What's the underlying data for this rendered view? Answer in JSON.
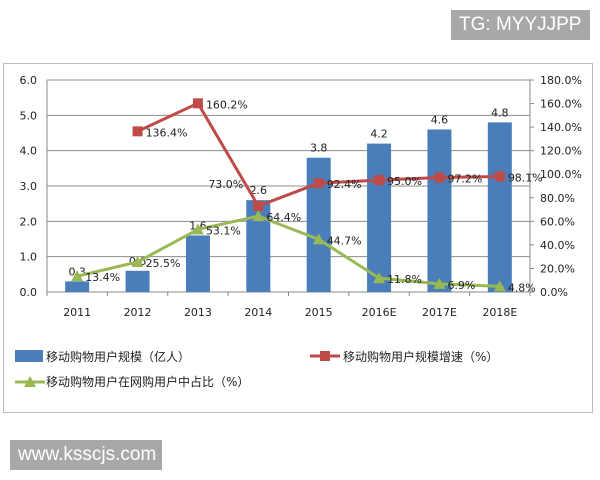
{
  "watermark_top": "TG: MYYJJPP",
  "watermark_bottom": "www.ksscjs.com",
  "chart_data": {
    "type": "bar+line",
    "categories": [
      "2011",
      "2012",
      "2013",
      "2014",
      "2015",
      "2016E",
      "2017E",
      "2018E"
    ],
    "y_left": {
      "range": [
        0,
        6
      ],
      "ticks": [
        "0.0",
        "1.0",
        "2.0",
        "3.0",
        "4.0",
        "5.0",
        "6.0"
      ]
    },
    "y_right": {
      "range": [
        0,
        180
      ],
      "ticks": [
        "0.0%",
        "20.0%",
        "40.0%",
        "60.0%",
        "80.0%",
        "100.0%",
        "120.0%",
        "140.0%",
        "160.0%",
        "180.0%"
      ]
    },
    "grid": true,
    "legend_position": "bottom",
    "series": [
      {
        "name": "移动购物用户规模（亿人）",
        "type": "bar",
        "axis": "left",
        "color": "#4a7ebb",
        "values": [
          0.3,
          0.6,
          1.6,
          2.6,
          3.8,
          4.2,
          4.6,
          4.8
        ],
        "labels": [
          "0.3",
          "0.6",
          "1.6",
          "2.6",
          "3.8",
          "4.2",
          "4.6",
          "4.8"
        ]
      },
      {
        "name": "移动购物用户规模增速（%）",
        "type": "line",
        "axis": "right",
        "color": "#be4b48",
        "marker": "square",
        "values": [
          null,
          136.4,
          160.2,
          73.0,
          92.4,
          95.0,
          97.2,
          98.1
        ],
        "labels": [
          "",
          "136.4%",
          "160.2%",
          "73.0%",
          "92.4%",
          "95.0%",
          "97.2%",
          "98.1%"
        ]
      },
      {
        "name": "移动购物用户在网购用户中占比（%）",
        "type": "line",
        "axis": "right",
        "color": "#98b954",
        "marker": "triangle",
        "values": [
          13.4,
          25.5,
          53.1,
          64.4,
          44.7,
          11.8,
          6.9,
          4.8
        ],
        "labels": [
          "13.4%",
          "25.5%",
          "53.1%",
          "64.4%",
          "44.7%",
          "11.8%",
          "6.9%",
          "4.8%"
        ]
      }
    ]
  }
}
